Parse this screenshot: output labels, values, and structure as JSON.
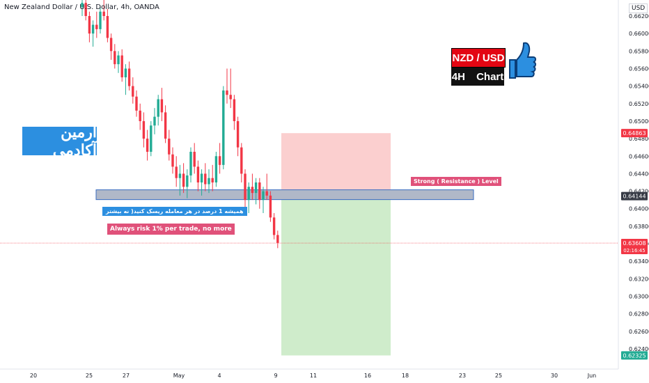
{
  "header": {
    "title": "New Zealand Dollar / U.S. Dollar, 4h, OANDA",
    "currency": "USD"
  },
  "overlays": {
    "brand_text": "آرمین آکادمی",
    "pair_label": "NZD / USD",
    "timeframe_label": "4H Chart",
    "persian_note": "همیشه 1 درصد در هر معامله ریسک کنید( نه بیشتر",
    "risk_note": "Always risk 1% per trade, no more",
    "resistance_note": "Strong ( Resistance ) Level"
  },
  "price_badges": {
    "stop": {
      "value": "0.64863",
      "color": "#f23645"
    },
    "resistance": {
      "value": "0.64144",
      "color": "#363a45"
    },
    "last": {
      "value": "0.63608",
      "sub": "02:16:45",
      "color": "#f23645"
    },
    "target": {
      "value": "0.62325",
      "color": "#22ab94"
    }
  },
  "chart_data": {
    "type": "candlestick",
    "title": "New Zealand Dollar / U.S. Dollar, 4h, OANDA",
    "y_ticks": [
      "0.66200",
      "0.66000",
      "0.65800",
      "0.65600",
      "0.65400",
      "0.65200",
      "0.65000",
      "0.64800",
      "0.64600",
      "0.64400",
      "0.64200",
      "0.64000",
      "0.63800",
      "0.63600",
      "0.63400",
      "0.63200",
      "0.63000",
      "0.62800",
      "0.62600",
      "0.62400"
    ],
    "x_ticks": [
      "20",
      "25",
      "27",
      "May",
      "4",
      "9",
      "11",
      "16",
      "18",
      "23",
      "25",
      "30",
      "Jun"
    ],
    "resistance_zone": [
      0.6412,
      0.642
    ],
    "position": {
      "entry": 0.6414,
      "stop": 0.64863,
      "target": 0.62325
    },
    "last_price": 0.63608,
    "ohlc": [
      [
        0.663,
        0.664,
        0.662,
        0.6635
      ],
      [
        0.6635,
        0.6645,
        0.6615,
        0.662
      ],
      [
        0.662,
        0.6625,
        0.659,
        0.66
      ],
      [
        0.66,
        0.6615,
        0.6585,
        0.661
      ],
      [
        0.661,
        0.6625,
        0.6595,
        0.6605
      ],
      [
        0.6605,
        0.663,
        0.66,
        0.6625
      ],
      [
        0.6625,
        0.664,
        0.6615,
        0.662
      ],
      [
        0.662,
        0.6628,
        0.659,
        0.6595
      ],
      [
        0.6595,
        0.66,
        0.657,
        0.658
      ],
      [
        0.658,
        0.6588,
        0.656,
        0.6565
      ],
      [
        0.6565,
        0.658,
        0.6555,
        0.6575
      ],
      [
        0.6575,
        0.6582,
        0.6545,
        0.655
      ],
      [
        0.655,
        0.6565,
        0.653,
        0.656
      ],
      [
        0.656,
        0.6568,
        0.6535,
        0.654
      ],
      [
        0.654,
        0.655,
        0.652,
        0.6528
      ],
      [
        0.6528,
        0.6535,
        0.6505,
        0.6512
      ],
      [
        0.6512,
        0.652,
        0.649,
        0.65
      ],
      [
        0.65,
        0.651,
        0.647,
        0.648
      ],
      [
        0.648,
        0.649,
        0.6455,
        0.6465
      ],
      [
        0.6465,
        0.65,
        0.646,
        0.6495
      ],
      [
        0.6495,
        0.6515,
        0.6485,
        0.6505
      ],
      [
        0.6505,
        0.653,
        0.6495,
        0.6525
      ],
      [
        0.6525,
        0.6538,
        0.65,
        0.651
      ],
      [
        0.651,
        0.6518,
        0.6475,
        0.648
      ],
      [
        0.648,
        0.649,
        0.6455,
        0.6462
      ],
      [
        0.6462,
        0.647,
        0.644,
        0.6448
      ],
      [
        0.6448,
        0.646,
        0.6425,
        0.6435
      ],
      [
        0.6435,
        0.645,
        0.6415,
        0.644
      ],
      [
        0.644,
        0.6452,
        0.6418,
        0.6425
      ],
      [
        0.6425,
        0.6445,
        0.6412,
        0.6438
      ],
      [
        0.6438,
        0.647,
        0.643,
        0.6465
      ],
      [
        0.6465,
        0.6475,
        0.644,
        0.6448
      ],
      [
        0.6448,
        0.6455,
        0.642,
        0.643
      ],
      [
        0.643,
        0.6445,
        0.6415,
        0.644
      ],
      [
        0.644,
        0.6452,
        0.642,
        0.6428
      ],
      [
        0.6428,
        0.6445,
        0.6418,
        0.6435
      ],
      [
        0.6435,
        0.645,
        0.642,
        0.643
      ],
      [
        0.643,
        0.6465,
        0.6425,
        0.646
      ],
      [
        0.646,
        0.6475,
        0.644,
        0.645
      ],
      [
        0.645,
        0.654,
        0.6445,
        0.6535
      ],
      [
        0.6535,
        0.656,
        0.652,
        0.653
      ],
      [
        0.653,
        0.656,
        0.6515,
        0.6525
      ],
      [
        0.6525,
        0.653,
        0.649,
        0.65
      ],
      [
        0.65,
        0.6505,
        0.646,
        0.647
      ],
      [
        0.647,
        0.6475,
        0.643,
        0.644
      ],
      [
        0.644,
        0.6445,
        0.64,
        0.641
      ],
      [
        0.641,
        0.643,
        0.6395,
        0.6425
      ],
      [
        0.6425,
        0.644,
        0.641,
        0.6418
      ],
      [
        0.6418,
        0.6435,
        0.6405,
        0.643
      ],
      [
        0.643,
        0.6435,
        0.64,
        0.641
      ],
      [
        0.641,
        0.6425,
        0.6395,
        0.642
      ],
      [
        0.642,
        0.644,
        0.641,
        0.6415
      ],
      [
        0.6415,
        0.642,
        0.6385,
        0.639
      ],
      [
        0.639,
        0.6395,
        0.6365,
        0.637
      ],
      [
        0.637,
        0.6375,
        0.6355,
        0.6361
      ]
    ]
  }
}
